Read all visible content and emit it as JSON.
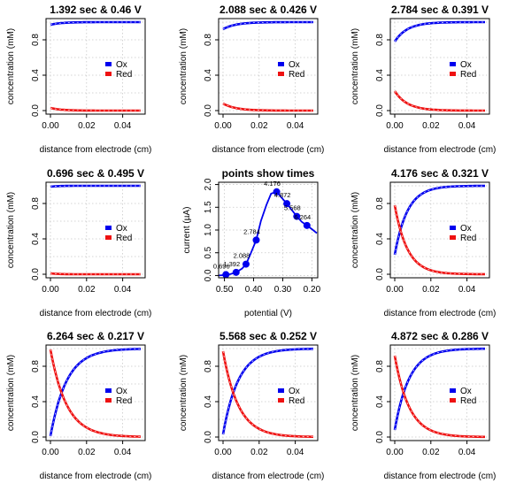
{
  "colors": {
    "ox": "#0000ee",
    "red": "#ee1111",
    "grid": "#c8c8c8"
  },
  "chart_data": [
    {
      "type": "line",
      "title": "1.392 sec & 0.46 V",
      "xlabel": "distance from electrode (cm)",
      "ylabel": "concentration (mM)",
      "xlim": [
        0,
        0.05
      ],
      "ylim": [
        0,
        1
      ],
      "xticks": [
        "0.00",
        "0.02",
        "0.04"
      ],
      "yticks": [
        "0.0",
        "0.4",
        "0.8"
      ],
      "grid": true,
      "legend": "right",
      "series": [
        {
          "name": "Ox",
          "profile": {
            "surface": 0.97,
            "bulk": 1.0,
            "decay_cm": 0.006
          }
        },
        {
          "name": "Red",
          "profile": {
            "surface": 0.03,
            "bulk": 0.0,
            "decay_cm": 0.006
          }
        }
      ]
    },
    {
      "type": "line",
      "title": "2.088 sec & 0.426 V",
      "xlabel": "distance from electrode (cm)",
      "ylabel": "concentration (mM)",
      "xlim": [
        0,
        0.05
      ],
      "ylim": [
        0,
        1
      ],
      "xticks": [
        "0.00",
        "0.02",
        "0.04"
      ],
      "yticks": [
        "0.0",
        "0.4",
        "0.8"
      ],
      "grid": true,
      "legend": "right",
      "series": [
        {
          "name": "Ox",
          "profile": {
            "surface": 0.92,
            "bulk": 1.0,
            "decay_cm": 0.007
          }
        },
        {
          "name": "Red",
          "profile": {
            "surface": 0.08,
            "bulk": 0.0,
            "decay_cm": 0.007
          }
        }
      ]
    },
    {
      "type": "line",
      "title": "2.784 sec & 0.391 V",
      "xlabel": "distance from electrode (cm)",
      "ylabel": "concentration (mM)",
      "xlim": [
        0,
        0.05
      ],
      "ylim": [
        0,
        1
      ],
      "xticks": [
        "0.00",
        "0.02",
        "0.04"
      ],
      "yticks": [
        "0.0",
        "0.4",
        "0.8"
      ],
      "grid": true,
      "legend": "right",
      "series": [
        {
          "name": "Ox",
          "profile": {
            "surface": 0.78,
            "bulk": 1.0,
            "decay_cm": 0.007
          }
        },
        {
          "name": "Red",
          "profile": {
            "surface": 0.22,
            "bulk": 0.0,
            "decay_cm": 0.007
          }
        }
      ]
    },
    {
      "type": "line",
      "title": "0.696 sec & 0.495 V",
      "xlabel": "distance from electrode (cm)",
      "ylabel": "concentration (mM)",
      "xlim": [
        0,
        0.05
      ],
      "ylim": [
        0,
        1
      ],
      "xticks": [
        "0.00",
        "0.02",
        "0.04"
      ],
      "yticks": [
        "0.0",
        "0.4",
        "0.8"
      ],
      "grid": true,
      "legend": "right",
      "series": [
        {
          "name": "Ox",
          "profile": {
            "surface": 0.99,
            "bulk": 1.0,
            "decay_cm": 0.004
          }
        },
        {
          "name": "Red",
          "profile": {
            "surface": 0.01,
            "bulk": 0.0,
            "decay_cm": 0.004
          }
        }
      ]
    },
    {
      "type": "scatter",
      "title": "points show times",
      "xlabel": "potential (V)",
      "ylabel": "current (µA)",
      "xlim": [
        0.52,
        0.18
      ],
      "ylim": [
        -0.05,
        2.05
      ],
      "xticks": [
        "0.50",
        "0.40",
        "0.30",
        "0.20"
      ],
      "yticks": [
        "0.0",
        "0.5",
        "1.0",
        "1.5",
        "2.0"
      ],
      "grid": true,
      "curve": {
        "potential": [
          0.53,
          0.5,
          0.48,
          0.46,
          0.44,
          0.426,
          0.41,
          0.391,
          0.375,
          0.356,
          0.34,
          0.321,
          0.305,
          0.286,
          0.27,
          0.252,
          0.235,
          0.217,
          0.2,
          0.183
        ],
        "current": [
          0.0,
          0.01,
          0.03,
          0.07,
          0.15,
          0.25,
          0.48,
          0.78,
          1.2,
          1.55,
          1.8,
          1.84,
          1.72,
          1.58,
          1.45,
          1.3,
          1.18,
          1.1,
          1.02,
          0.93
        ]
      },
      "points": [
        {
          "label": "0.696",
          "potential": 0.495,
          "current": 0.02
        },
        {
          "label": "1.392",
          "potential": 0.46,
          "current": 0.07
        },
        {
          "label": "2.088",
          "potential": 0.426,
          "current": 0.25
        },
        {
          "label": "2.784",
          "potential": 0.391,
          "current": 0.78
        },
        {
          "label": "4.176",
          "potential": 0.321,
          "current": 1.84
        },
        {
          "label": "4.872",
          "potential": 0.286,
          "current": 1.58
        },
        {
          "label": "5.568",
          "potential": 0.252,
          "current": 1.3
        },
        {
          "label": "6.264",
          "potential": 0.217,
          "current": 1.1
        }
      ]
    },
    {
      "type": "line",
      "title": "4.176 sec & 0.321 V",
      "xlabel": "distance from electrode (cm)",
      "ylabel": "concentration (mM)",
      "xlim": [
        0,
        0.05
      ],
      "ylim": [
        0,
        1
      ],
      "xticks": [
        "0.00",
        "0.02",
        "0.04"
      ],
      "yticks": [
        "0.0",
        "0.4",
        "0.8"
      ],
      "grid": true,
      "legend": "right",
      "series": [
        {
          "name": "Ox",
          "profile": {
            "surface": 0.22,
            "bulk": 1.0,
            "decay_cm": 0.007
          }
        },
        {
          "name": "Red",
          "profile": {
            "surface": 0.78,
            "bulk": 0.0,
            "decay_cm": 0.007
          }
        }
      ]
    },
    {
      "type": "line",
      "title": "6.264 sec & 0.217 V",
      "xlabel": "distance from electrode (cm)",
      "ylabel": "concentration (mM)",
      "xlim": [
        0,
        0.05
      ],
      "ylim": [
        0,
        1
      ],
      "xticks": [
        "0.00",
        "0.02",
        "0.04"
      ],
      "yticks": [
        "0.0",
        "0.4",
        "0.8"
      ],
      "grid": true,
      "legend": "right",
      "series": [
        {
          "name": "Ox",
          "profile": {
            "surface": 0.01,
            "bulk": 1.0,
            "decay_cm": 0.009
          }
        },
        {
          "name": "Red",
          "profile": {
            "surface": 0.99,
            "bulk": 0.0,
            "decay_cm": 0.009
          }
        }
      ]
    },
    {
      "type": "line",
      "title": "5.568 sec & 0.252 V",
      "xlabel": "distance from electrode (cm)",
      "ylabel": "concentration (mM)",
      "xlim": [
        0,
        0.05
      ],
      "ylim": [
        0,
        1
      ],
      "xticks": [
        "0.00",
        "0.02",
        "0.04"
      ],
      "yticks": [
        "0.0",
        "0.4",
        "0.8"
      ],
      "grid": true,
      "legend": "right",
      "series": [
        {
          "name": "Ox",
          "profile": {
            "surface": 0.03,
            "bulk": 1.0,
            "decay_cm": 0.0085
          }
        },
        {
          "name": "Red",
          "profile": {
            "surface": 0.97,
            "bulk": 0.0,
            "decay_cm": 0.0085
          }
        }
      ]
    },
    {
      "type": "line",
      "title": "4.872 sec & 0.286 V",
      "xlabel": "distance from electrode (cm)",
      "ylabel": "concentration (mM)",
      "xlim": [
        0,
        0.05
      ],
      "ylim": [
        0,
        1
      ],
      "xticks": [
        "0.00",
        "0.02",
        "0.04"
      ],
      "yticks": [
        "0.0",
        "0.4",
        "0.8"
      ],
      "grid": true,
      "legend": "right",
      "series": [
        {
          "name": "Ox",
          "profile": {
            "surface": 0.08,
            "bulk": 1.0,
            "decay_cm": 0.008
          }
        },
        {
          "name": "Red",
          "profile": {
            "surface": 0.92,
            "bulk": 0.0,
            "decay_cm": 0.008
          }
        }
      ]
    }
  ]
}
